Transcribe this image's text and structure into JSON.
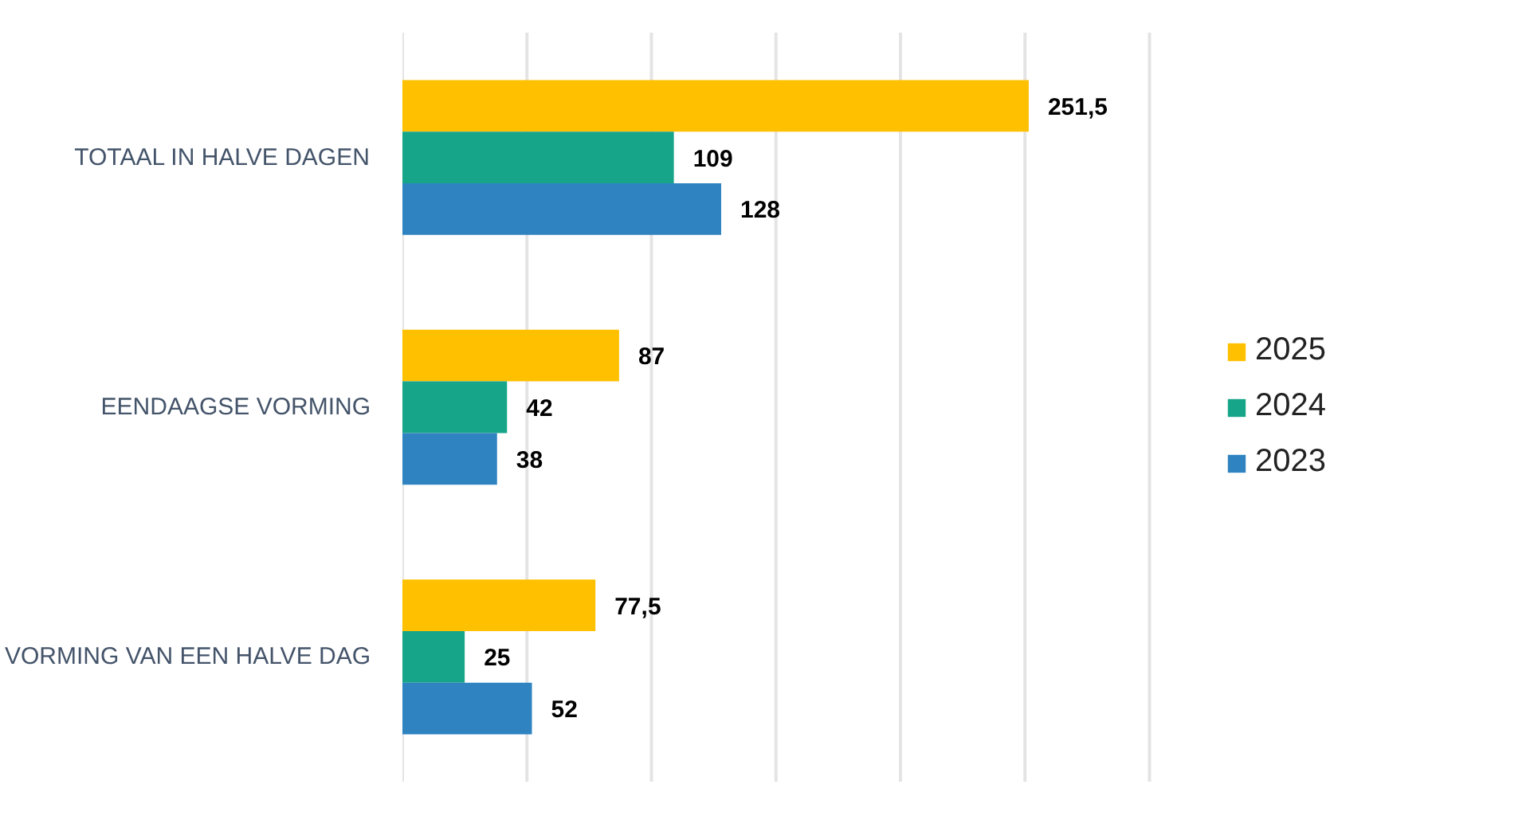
{
  "chart_data": {
    "type": "bar",
    "orientation": "horizontal",
    "categories": [
      "TOTAAL IN HALVE DAGEN",
      "EENDAAGSE VORMING",
      "VORMING VAN EEN HALVE DAG"
    ],
    "series": [
      {
        "name": "2025",
        "color": "#ffc000",
        "values": [
          251.5,
          87,
          77.5
        ],
        "value_labels": [
          "251,5",
          "87",
          "77,5"
        ]
      },
      {
        "name": "2024",
        "color": "#17a589",
        "values": [
          109,
          42,
          25
        ],
        "value_labels": [
          "109",
          "42",
          "25"
        ]
      },
      {
        "name": "2023",
        "color": "#2e83c0",
        "values": [
          128,
          38,
          52
        ],
        "value_labels": [
          "128",
          "38",
          "52"
        ]
      }
    ],
    "xticks": [
      {
        "value": 0,
        "label": null
      },
      {
        "value": 50,
        "label": null
      },
      {
        "value": 100,
        "label": null
      },
      {
        "value": 150,
        "label": null
      },
      {
        "value": 200,
        "label": null
      },
      {
        "value": 250,
        "label": null
      },
      {
        "value": 300,
        "label": null
      }
    ],
    "tick_labels": "y",
    "grid": "x",
    "legend": "right"
  }
}
